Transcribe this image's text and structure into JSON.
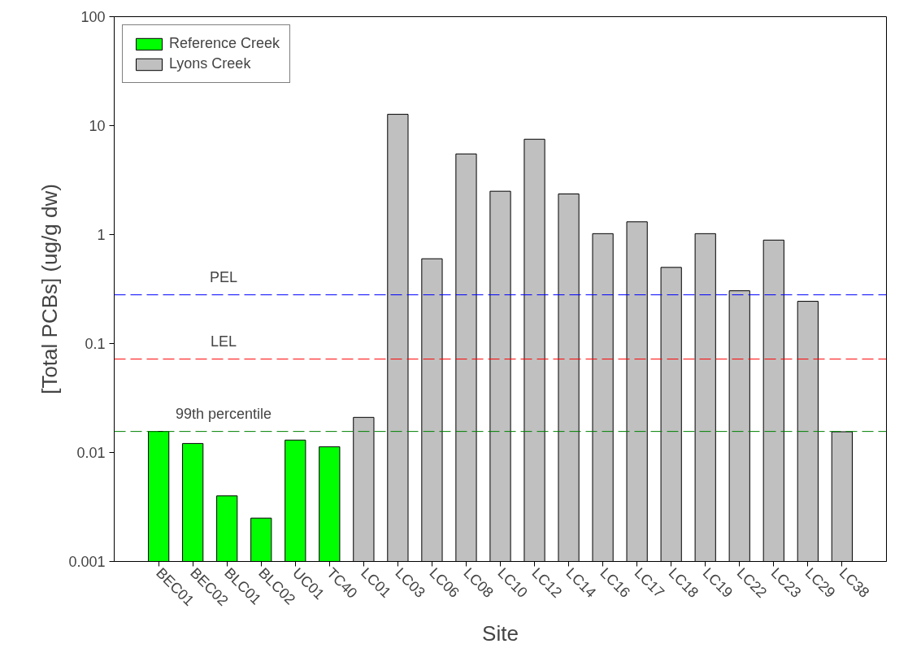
{
  "chart_data": {
    "type": "bar",
    "xlabel": "Site",
    "ylabel": "[Total PCBs] (ug/g dw)",
    "categories": [
      "BEC01",
      "BEC02",
      "BLC01",
      "BLC02",
      "UC01",
      "TC40",
      "LC01",
      "LC03",
      "LC06",
      "LC08",
      "LC10",
      "LC12",
      "LC14",
      "LC16",
      "LC17",
      "LC18",
      "LC19",
      "LC22",
      "LC23",
      "LC29",
      "LC38"
    ],
    "series": [
      {
        "name": "Reference Creek",
        "color": "#00ff00",
        "values": [
          0.0156,
          0.0121,
          0.004,
          0.0025,
          0.013,
          0.0113,
          null,
          null,
          null,
          null,
          null,
          null,
          null,
          null,
          null,
          null,
          null,
          null,
          null,
          null,
          null
        ]
      },
      {
        "name": "Lyons Creek",
        "color": "#c0c0c0",
        "values": [
          null,
          null,
          null,
          null,
          null,
          null,
          0.021,
          12.7,
          0.6,
          5.5,
          2.5,
          7.5,
          2.36,
          1.02,
          1.31,
          0.5,
          1.02,
          0.305,
          0.89,
          0.244,
          0.0155
        ]
      }
    ],
    "log": true,
    "ylim": [
      0.001,
      100
    ],
    "yticks": [
      {
        "value": 0.001,
        "label": "0.001"
      },
      {
        "value": 0.01,
        "label": "0.01"
      },
      {
        "value": 0.1,
        "label": "0.1"
      },
      {
        "value": 1,
        "label": "1"
      },
      {
        "value": 10,
        "label": "10"
      },
      {
        "value": 100,
        "label": "100"
      }
    ],
    "ref_lines": [
      {
        "axis": "y",
        "value": 0.28,
        "label": "PEL",
        "color": "#0000ff",
        "line_style": "dashed"
      },
      {
        "axis": "y",
        "value": 0.072,
        "label": "LEL",
        "color": "#ff0000",
        "line_style": "dashed"
      },
      {
        "axis": "y",
        "value": 0.0156,
        "label": "99th percentile",
        "color": "#008000",
        "line_style": "dashed"
      }
    ],
    "grid": false,
    "legend": "top left"
  }
}
